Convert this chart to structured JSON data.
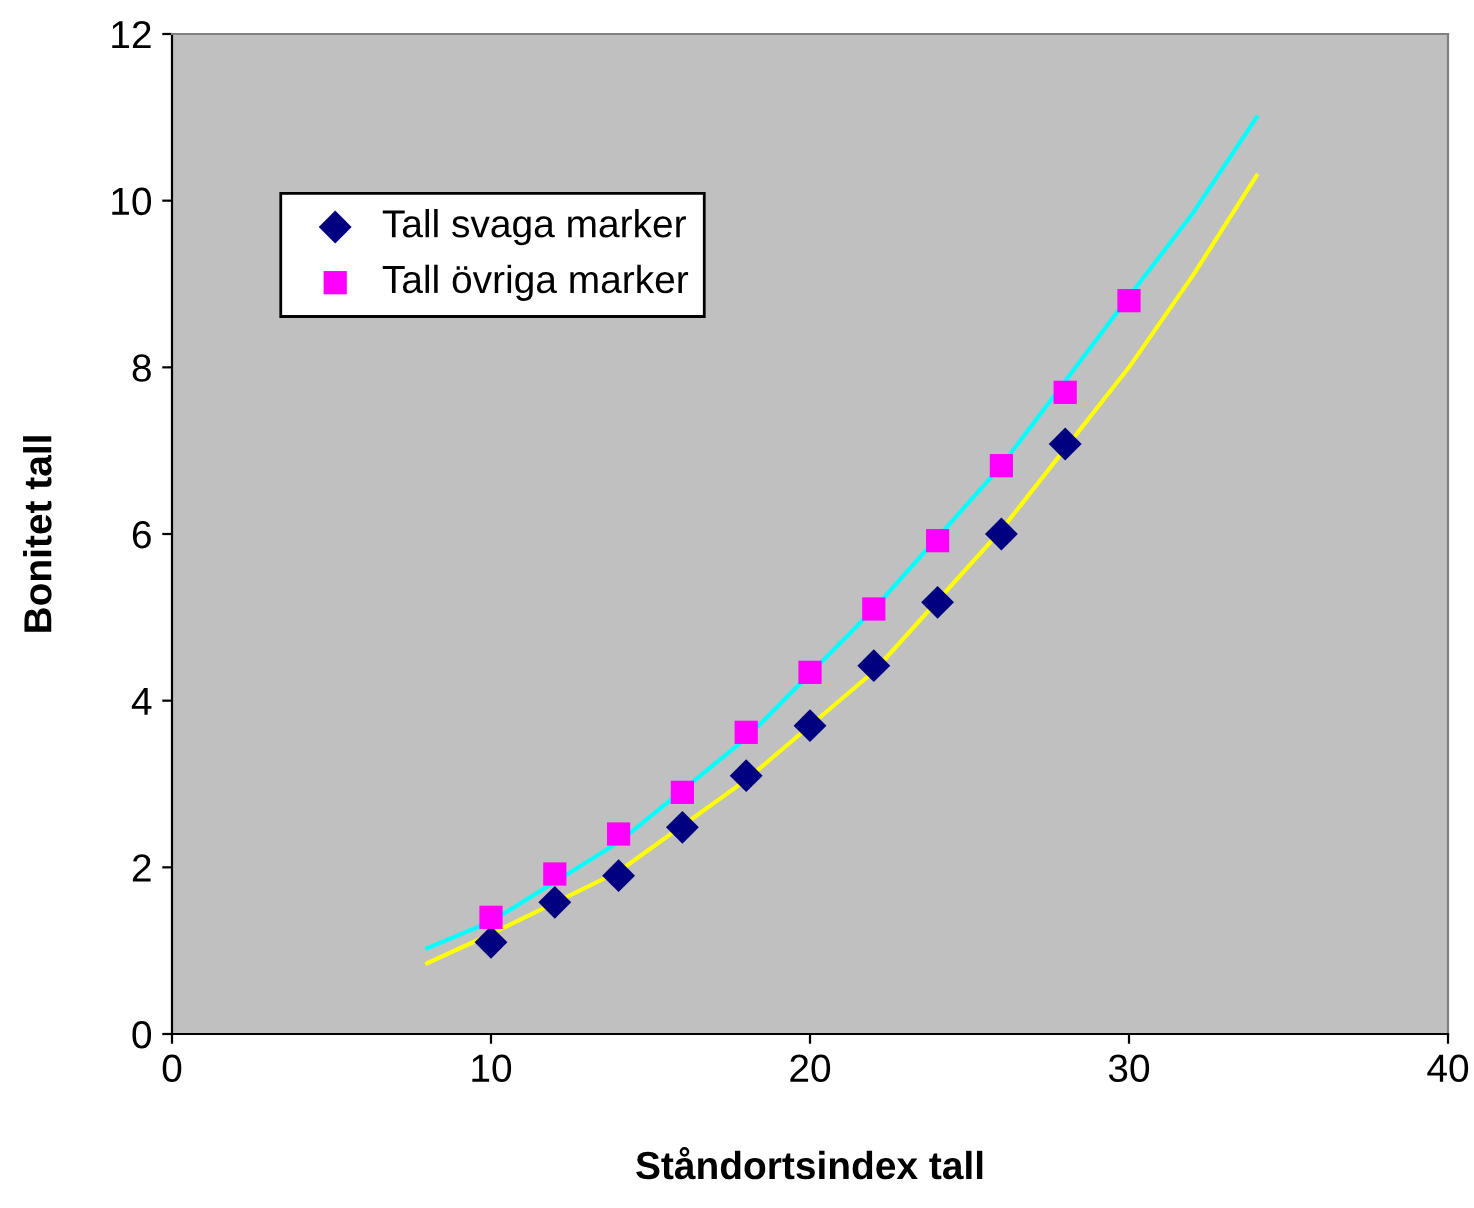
{
  "chart_data": {
    "type": "scatter",
    "xlabel": "Ståndortsindex tall",
    "ylabel": "Bonitet tall",
    "xlim": [
      0,
      40
    ],
    "ylim": [
      0,
      12
    ],
    "xticks": [
      0,
      10,
      20,
      30,
      40
    ],
    "yticks": [
      0,
      2,
      4,
      6,
      8,
      10,
      12
    ],
    "grid": false,
    "legend": "top left",
    "series": [
      {
        "type": "line",
        "color": "#00ffff",
        "marker": "none",
        "line_style": "solid",
        "x": [
          8,
          10,
          14,
          18,
          22,
          26,
          30,
          32,
          34
        ],
        "values": [
          1.03,
          1.35,
          2.3,
          3.55,
          5.1,
          6.82,
          8.85,
          9.85,
          11.0
        ]
      },
      {
        "type": "line",
        "color": "#ffff00",
        "marker": "none",
        "line_style": "solid",
        "x": [
          8,
          10,
          14,
          18,
          22,
          26,
          30,
          32,
          34
        ],
        "values": [
          0.85,
          1.2,
          1.95,
          3.05,
          4.35,
          6.05,
          8.0,
          9.1,
          10.3
        ]
      },
      {
        "name": "Tall svaga marker",
        "color": "#000080",
        "marker": "diamond",
        "x": [
          10,
          12,
          14,
          16,
          18,
          20,
          22,
          24,
          26,
          28
        ],
        "values": [
          1.1,
          1.58,
          1.9,
          2.48,
          3.1,
          3.7,
          4.42,
          5.18,
          6.0,
          7.08
        ]
      },
      {
        "name": "Tall övriga marker",
        "color": "#ff00ff",
        "marker": "square",
        "x": [
          10,
          12,
          14,
          16,
          18,
          20,
          22,
          24,
          26,
          28,
          30
        ],
        "values": [
          1.4,
          1.92,
          2.4,
          2.9,
          3.62,
          4.34,
          5.1,
          5.92,
          6.82,
          7.7,
          8.8
        ]
      }
    ]
  }
}
